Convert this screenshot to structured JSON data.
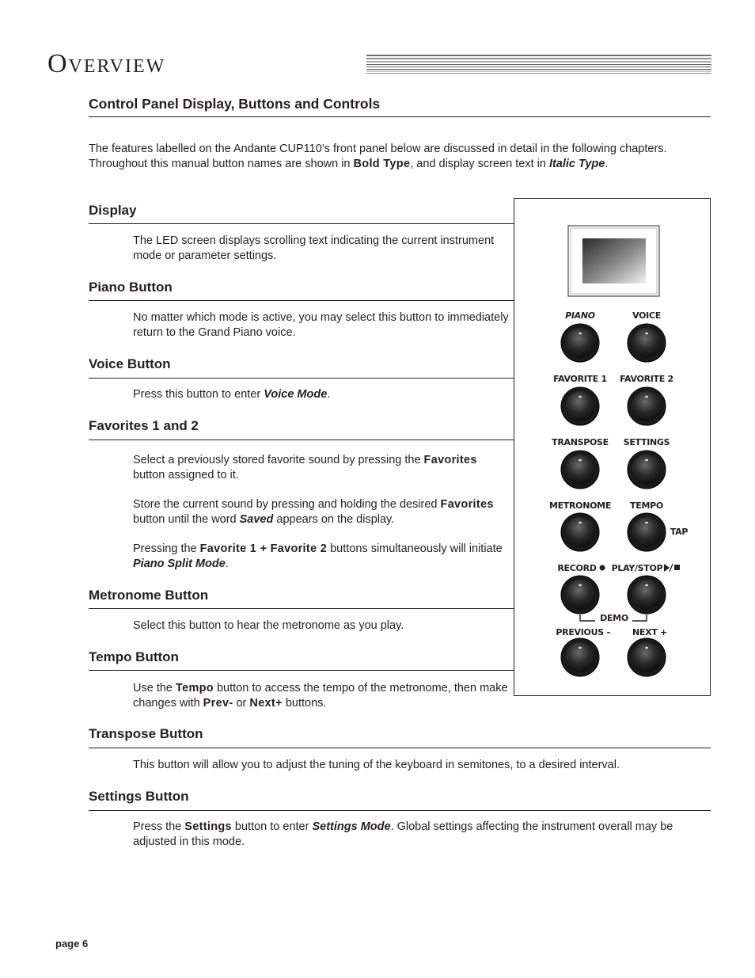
{
  "header": {
    "title": "Overview"
  },
  "section_title": "Control Panel Display, Buttons and Controls",
  "intro": [
    "The features labelled on the Andante CUP110’s front panel below are discussed in detail in the following chapters. Throughout this manual button names are shown in ",
    "Bold Type",
    ", and display screen text in ",
    "Italic Type",
    "."
  ],
  "sections": [
    {
      "heading": "Display",
      "paragraphs": [
        [
          "The LED screen displays scrolling text indicating the current instrument mode or parameter settings."
        ]
      ]
    },
    {
      "heading": "Piano Button",
      "paragraphs": [
        [
          "No matter which mode is active, you may select this button to immediately return to the Grand Piano voice."
        ]
      ]
    },
    {
      "heading": "Voice Button",
      "paragraphs": [
        [
          "Press this button to enter ",
          "Voice Mode",
          "."
        ]
      ]
    },
    {
      "heading": "Favorites 1 and 2",
      "paragraphs": [
        [
          "Select a previously stored favorite sound by pressing the ",
          "Favorites",
          " button assigned to it."
        ],
        [
          "Store the current sound by pressing and holding the desired ",
          "Favorites",
          " button until the word ",
          "Saved",
          " appears on the display."
        ],
        [
          "Pressing the ",
          "Favorite 1 + Favorite 2",
          " buttons simultaneously will initiate ",
          "Piano Split Mode",
          "."
        ]
      ]
    },
    {
      "heading": "Metronome Button",
      "paragraphs": [
        [
          "Select this button to hear the metronome as you play."
        ]
      ]
    },
    {
      "heading": "Tempo Button",
      "paragraphs": [
        [
          "Use the ",
          "Tempo",
          " button to access the tempo of the metronome, then make changes with ",
          "Prev-",
          " or ",
          "Next+",
          " buttons."
        ]
      ]
    },
    {
      "heading": "Transpose Button",
      "paragraphs": [
        [
          "This button will allow you to adjust the tuning of the keyboard in semitones, to a desired interval."
        ]
      ]
    },
    {
      "heading": "Settings Button",
      "paragraphs": [
        [
          "Press the ",
          "Settings",
          " button to enter ",
          "Settings Mode",
          ".  Global settings affecting the instrument overall may be adjusted in this mode."
        ]
      ]
    }
  ],
  "panel": {
    "labels": [
      "PIANO",
      "VOICE",
      "FAVORITE 1",
      "FAVORITE 2",
      "TRANSPOSE",
      "SETTINGS",
      "METRONOME",
      "TEMPO",
      "TAP",
      "RECORD",
      "PLAY/STOP",
      "DEMO",
      "PREVIOUS –",
      "NEXT +"
    ]
  },
  "footer": {
    "page": "page 6"
  }
}
